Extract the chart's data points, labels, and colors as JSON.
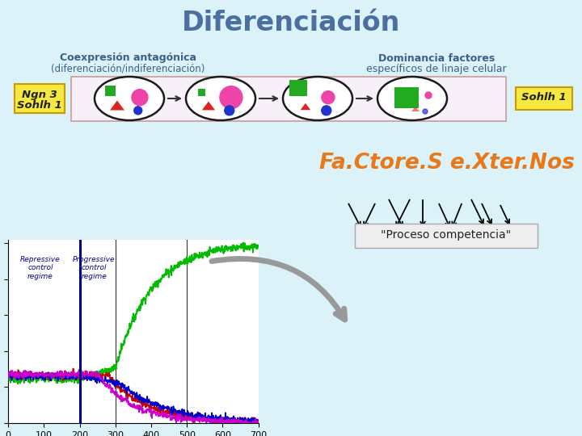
{
  "title": "Diferenciación",
  "title_color": "#4a6fa0",
  "bg_color": "#daf2f8",
  "left_label_line1": "Coexpresión antagónica",
  "left_label_line2": "(diferenciación/indiferenciación)",
  "right_label_line1": "Dominancia factores",
  "right_label_line2": "específicos de linaje celular",
  "label_color": "#3a5f8a",
  "factors_text": "Fa.Ctore.S e.Xter.Nos",
  "factors_color": "#e87818",
  "proceso_text": "\"Proceso competencia\"",
  "cell_box_border": "#cc9999",
  "cell_box_bg": "#f8f0f8",
  "ngn_box_color": "#f5e840",
  "ngn_box_border": "#cc9900",
  "sohlh_box_color": "#f5e840",
  "sohlh_box_border": "#cc9900",
  "green_color": "#22aa22",
  "pink_color": "#ee44aa",
  "red_color": "#dd2222",
  "blue_color": "#2233cc",
  "arrow_color": "#333333",
  "gray_arrow_color": "#999999",
  "graph_green": "#00bb00",
  "graph_red": "#cc0000",
  "graph_blue": "#0000cc",
  "graph_magenta": "#cc00cc",
  "graph_vline": "#00008b",
  "graph_vline2": "#333333",
  "label_blue": "#00008b"
}
